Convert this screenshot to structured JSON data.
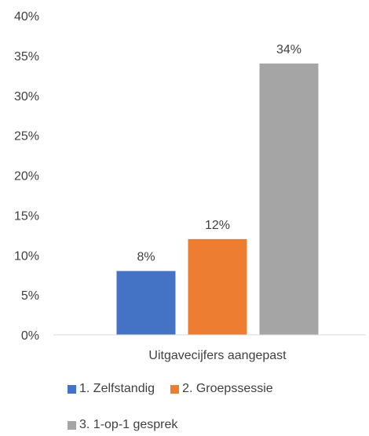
{
  "chart_data": {
    "type": "bar",
    "categories": [
      "Uitgavecijfers aangepast"
    ],
    "series": [
      {
        "name": "1. Zelfstandig",
        "values": [
          8
        ],
        "label": "8%",
        "color": "#4472C4"
      },
      {
        "name": "2. Groepssessie",
        "values": [
          12
        ],
        "label": "12%",
        "color": "#ED7D31"
      },
      {
        "name": "3. 1-op-1 gesprek",
        "values": [
          34
        ],
        "label": "34%",
        "color": "#A5A5A5"
      }
    ],
    "yticks": [
      "0%",
      "5%",
      "10%",
      "15%",
      "20%",
      "25%",
      "30%",
      "35%",
      "40%"
    ],
    "ylim": [
      0,
      40
    ],
    "grid": false,
    "legend_position": "bottom",
    "title": "",
    "xlabel": "",
    "ylabel": ""
  }
}
